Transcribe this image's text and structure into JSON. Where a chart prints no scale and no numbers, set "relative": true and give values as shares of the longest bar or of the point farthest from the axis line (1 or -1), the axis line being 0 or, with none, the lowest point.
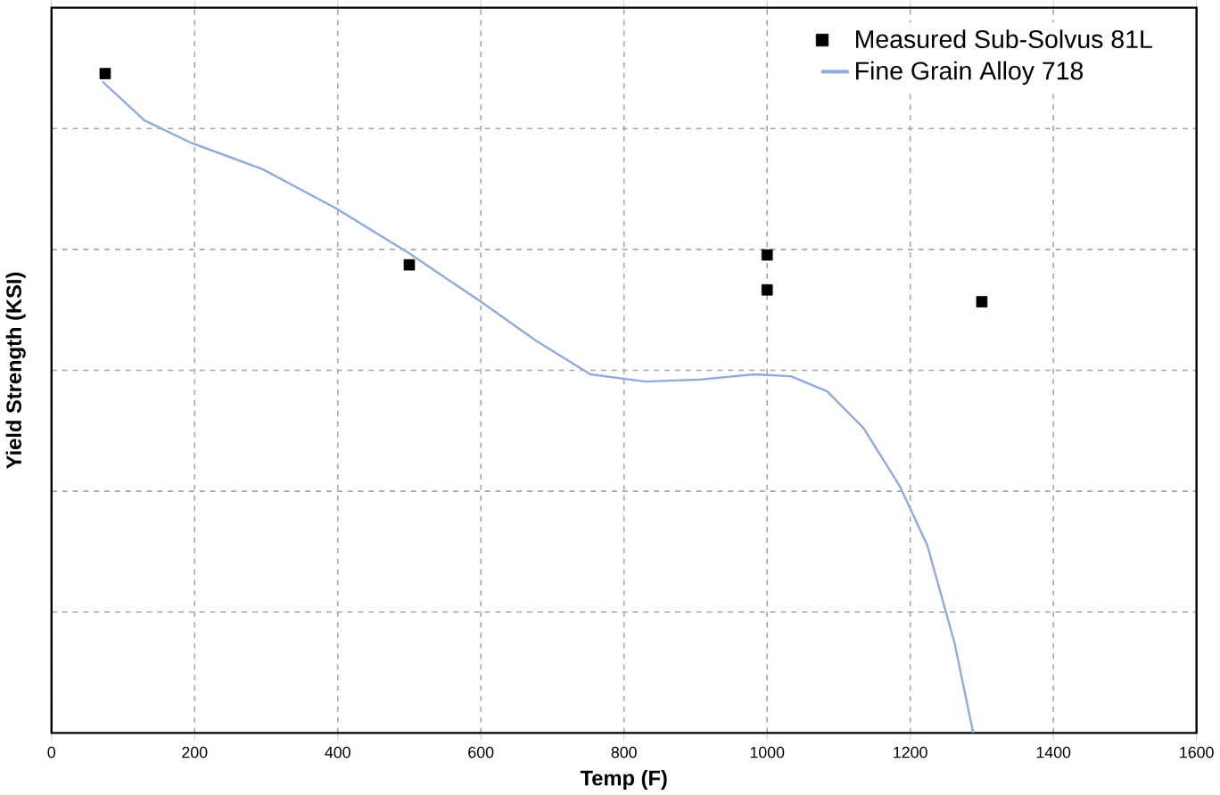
{
  "chart_data": {
    "type": "scatter",
    "relative": true,
    "xlabel": "Temp (F)",
    "ylabel": "Yield Strength (KSI)",
    "xlim": [
      0,
      1600
    ],
    "xticks": [
      0,
      200,
      400,
      600,
      800,
      1000,
      1200,
      1400,
      1600
    ],
    "grid": true,
    "legend": "top right",
    "series": [
      {
        "name": "Measured Sub-Solvus 81L",
        "marker": "square",
        "color": "#000000",
        "x": [
          75,
          500,
          1000,
          1000,
          1300
        ],
        "values": [
          1.0,
          0.71,
          0.725,
          0.672,
          0.654
        ]
      },
      {
        "name": "Fine Grain Alloy 718",
        "type": "line",
        "marker": "none",
        "color": "#8faadc",
        "x": [
          71,
          130,
          193,
          295,
          397,
          499,
          600,
          677,
          753,
          830,
          906,
          982,
          1033,
          1084,
          1135,
          1186,
          1224,
          1262,
          1288
        ],
        "values": [
          0.988,
          0.929,
          0.896,
          0.855,
          0.796,
          0.728,
          0.654,
          0.595,
          0.544,
          0.533,
          0.536,
          0.544,
          0.541,
          0.518,
          0.462,
          0.373,
          0.284,
          0.136,
          0.0
        ]
      }
    ]
  }
}
